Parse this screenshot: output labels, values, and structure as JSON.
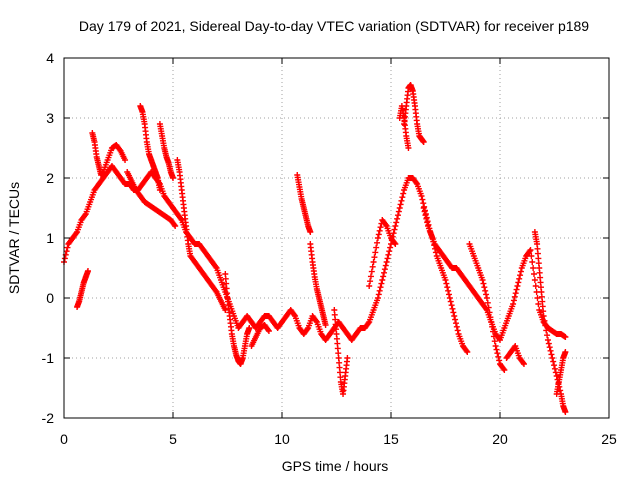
{
  "colors": {
    "series": "#ff0000",
    "axis": "#000000",
    "grid": "#a0a0a0",
    "background": "#ffffff"
  },
  "chart_data": {
    "type": "scatter",
    "title": "Day 179 of 2021, Sidereal Day-to-day VTEC variation (SDTVAR) for receiver p189",
    "xlabel": "GPS time / hours",
    "ylabel": "SDTVAR / TECUs",
    "xlim": [
      0,
      25
    ],
    "ylim": [
      -2,
      4
    ],
    "xticks": [
      0,
      5,
      10,
      15,
      20,
      25
    ],
    "yticks": [
      -2,
      -1,
      0,
      1,
      2,
      3,
      4
    ],
    "grid": true,
    "marker": "plus",
    "series": [
      {
        "name": "SDTVAR",
        "segments": [
          {
            "x": [
              0.0,
              0.2,
              0.4,
              0.6,
              0.8,
              1.0,
              1.2,
              1.4,
              1.6,
              1.8,
              2.0,
              2.2,
              2.4,
              2.6,
              2.8,
              3.0,
              3.2,
              3.4,
              3.6,
              3.8,
              4.0,
              4.2,
              4.4,
              4.6,
              4.8,
              5.0,
              5.2,
              5.4,
              5.6,
              5.8,
              6.0,
              6.2,
              6.4,
              6.6,
              6.8,
              7.0,
              7.2,
              7.4,
              7.6,
              7.8,
              8.0,
              8.2,
              8.4,
              8.6,
              8.8,
              9.0,
              9.2,
              9.4,
              9.6,
              9.8,
              10.0,
              10.2,
              10.4,
              10.6,
              10.8,
              11.0,
              11.2,
              11.4,
              11.6,
              11.8,
              12.0,
              12.2,
              12.4,
              12.6,
              12.8,
              13.0,
              13.2,
              13.4,
              13.6,
              13.8,
              14.0,
              14.2,
              14.4,
              14.6,
              14.8,
              15.0,
              15.2,
              15.4,
              15.6,
              15.8,
              16.0,
              16.2,
              16.4,
              16.6,
              16.8,
              17.0,
              17.2,
              17.4,
              17.6,
              17.8,
              18.0,
              18.2,
              18.4,
              18.6,
              18.8,
              19.0,
              19.2,
              19.4,
              19.6,
              19.8,
              20.0,
              20.2,
              20.4,
              20.6,
              20.8,
              21.0,
              21.2,
              21.4,
              21.6,
              21.8,
              22.0,
              22.2,
              22.4,
              22.6,
              22.8,
              23.0
            ],
            "y": [
              0.6,
              0.9,
              1.0,
              1.1,
              1.3,
              1.4,
              1.6,
              1.8,
              1.9,
              2.0,
              2.1,
              2.2,
              2.1,
              2.0,
              1.9,
              1.9,
              1.8,
              1.8,
              1.9,
              2.0,
              2.1,
              2.0,
              1.9,
              1.7,
              1.6,
              1.5,
              1.4,
              1.3,
              1.1,
              1.0,
              0.9,
              0.9,
              0.8,
              0.7,
              0.6,
              0.5,
              0.3,
              0.1,
              -0.1,
              -0.3,
              -0.5,
              -0.4,
              -0.3,
              -0.4,
              -0.5,
              -0.4,
              -0.3,
              -0.3,
              -0.4,
              -0.5,
              -0.4,
              -0.3,
              -0.2,
              -0.3,
              -0.5,
              -0.6,
              -0.5,
              -0.3,
              -0.4,
              -0.6,
              -0.7,
              -0.6,
              -0.5,
              -0.4,
              -0.5,
              -0.6,
              -0.7,
              -0.6,
              -0.5,
              -0.5,
              -0.4,
              -0.2,
              0.0,
              0.3,
              0.6,
              0.9,
              1.2,
              1.5,
              1.8,
              2.0,
              2.0,
              1.9,
              1.7,
              1.4,
              1.1,
              0.9,
              0.8,
              0.7,
              0.6,
              0.5,
              0.5,
              0.4,
              0.3,
              0.2,
              0.1,
              0.0,
              -0.1,
              -0.2,
              -0.4,
              -0.6,
              -0.7,
              -0.5,
              -0.3,
              -0.1,
              0.2,
              0.5,
              0.7,
              0.8,
              0.3,
              -0.2,
              -0.4,
              -0.5,
              -0.55,
              -0.6,
              -0.6,
              -0.65
            ]
          },
          {
            "x": [
              0.6,
              0.7,
              0.8,
              0.9,
              1.0,
              1.1
            ],
            "y": [
              -0.15,
              -0.05,
              0.1,
              0.25,
              0.35,
              0.45
            ]
          },
          {
            "x": [
              1.3,
              1.4,
              1.5,
              1.6,
              1.7,
              1.8,
              2.0,
              2.2,
              2.4,
              2.6,
              2.8
            ],
            "y": [
              2.75,
              2.6,
              2.35,
              2.2,
              2.05,
              2.1,
              2.3,
              2.5,
              2.55,
              2.45,
              2.3
            ]
          },
          {
            "x": [
              3.5,
              3.6,
              3.7,
              3.8,
              3.9,
              4.0,
              4.1,
              4.2,
              4.3,
              4.4
            ],
            "y": [
              3.2,
              3.1,
              2.9,
              2.6,
              2.4,
              2.3,
              2.2,
              2.1,
              2.0,
              1.8
            ]
          },
          {
            "x": [
              4.4,
              4.5,
              4.6,
              4.7,
              4.8,
              4.9,
              5.0
            ],
            "y": [
              2.9,
              2.7,
              2.5,
              2.35,
              2.25,
              2.1,
              2.0
            ]
          },
          {
            "x": [
              2.9,
              3.1,
              3.3,
              3.5,
              3.7,
              3.9,
              4.1,
              4.3,
              4.5,
              4.7,
              4.9,
              5.1
            ],
            "y": [
              2.1,
              1.95,
              1.8,
              1.7,
              1.6,
              1.55,
              1.5,
              1.45,
              1.4,
              1.35,
              1.3,
              1.2
            ]
          },
          {
            "x": [
              5.2,
              5.3,
              5.4,
              5.5,
              5.6,
              5.7,
              5.8,
              6.0,
              6.2,
              6.4,
              6.6,
              6.8,
              7.0,
              7.2,
              7.4
            ],
            "y": [
              2.3,
              2.1,
              1.8,
              1.5,
              1.2,
              0.9,
              0.7,
              0.6,
              0.5,
              0.4,
              0.3,
              0.2,
              0.1,
              -0.05,
              -0.2
            ]
          },
          {
            "x": [
              7.4,
              7.5,
              7.6,
              7.7,
              7.8,
              7.9,
              8.0,
              8.1,
              8.2,
              8.3,
              8.4,
              8.5
            ],
            "y": [
              0.4,
              0.0,
              -0.3,
              -0.6,
              -0.8,
              -0.95,
              -1.05,
              -1.1,
              -1.0,
              -0.8,
              -0.6,
              -0.5
            ]
          },
          {
            "x": [
              8.6,
              8.8,
              9.0,
              9.2,
              9.4
            ],
            "y": [
              -0.8,
              -0.65,
              -0.5,
              -0.45,
              -0.55
            ]
          },
          {
            "x": [
              10.7,
              10.8,
              10.9,
              11.0,
              11.1,
              11.2,
              11.3
            ],
            "y": [
              2.05,
              1.85,
              1.65,
              1.5,
              1.35,
              1.2,
              1.1
            ]
          },
          {
            "x": [
              11.3,
              11.4,
              11.5,
              11.6,
              11.7,
              11.8,
              11.9,
              12.0
            ],
            "y": [
              0.9,
              0.6,
              0.35,
              0.15,
              0.0,
              -0.15,
              -0.3,
              -0.45
            ]
          },
          {
            "x": [
              12.4,
              12.5,
              12.6,
              12.7,
              12.8,
              12.9,
              13.0
            ],
            "y": [
              -0.2,
              -0.6,
              -1.0,
              -1.4,
              -1.6,
              -1.3,
              -1.0
            ]
          },
          {
            "x": [
              14.0,
              14.2,
              14.4,
              14.6,
              14.8,
              15.0,
              15.2
            ],
            "y": [
              0.2,
              0.6,
              1.0,
              1.3,
              1.2,
              1.0,
              0.9
            ]
          },
          {
            "x": [
              15.6,
              15.7,
              15.8,
              15.9,
              16.0,
              16.1,
              16.2,
              16.3,
              16.4,
              16.5
            ],
            "y": [
              2.9,
              3.2,
              3.5,
              3.55,
              3.45,
              3.2,
              2.9,
              2.7,
              2.65,
              2.6
            ]
          },
          {
            "x": [
              15.4,
              15.5,
              15.6,
              15.7,
              15.8
            ],
            "y": [
              3.0,
              3.2,
              3.0,
              2.7,
              2.5
            ]
          },
          {
            "x": [
              16.5,
              16.7,
              16.9,
              17.1,
              17.3,
              17.5,
              17.7,
              17.9,
              18.1,
              18.3,
              18.5
            ],
            "y": [
              1.5,
              1.2,
              1.0,
              0.7,
              0.5,
              0.3,
              0.0,
              -0.3,
              -0.6,
              -0.8,
              -0.9
            ]
          },
          {
            "x": [
              18.6,
              18.8,
              19.0,
              19.2,
              19.4,
              19.6,
              19.8,
              20.0,
              20.2
            ],
            "y": [
              0.9,
              0.7,
              0.5,
              0.3,
              0.0,
              -0.4,
              -0.8,
              -1.1,
              -1.2
            ]
          },
          {
            "x": [
              20.3,
              20.5,
              20.7,
              20.9,
              21.1
            ],
            "y": [
              -1.0,
              -0.9,
              -0.8,
              -1.0,
              -1.1
            ]
          },
          {
            "x": [
              21.6,
              21.7,
              21.8,
              21.9,
              22.0,
              22.2,
              22.4,
              22.6,
              22.8,
              22.9,
              23.0
            ],
            "y": [
              1.1,
              0.9,
              0.5,
              0.1,
              -0.3,
              -0.7,
              -1.0,
              -1.3,
              -1.6,
              -1.8,
              -1.9
            ]
          },
          {
            "x": [
              22.6,
              22.7,
              22.8,
              22.9,
              23.0
            ],
            "y": [
              -1.6,
              -1.4,
              -1.2,
              -1.0,
              -0.9
            ]
          }
        ]
      }
    ]
  }
}
